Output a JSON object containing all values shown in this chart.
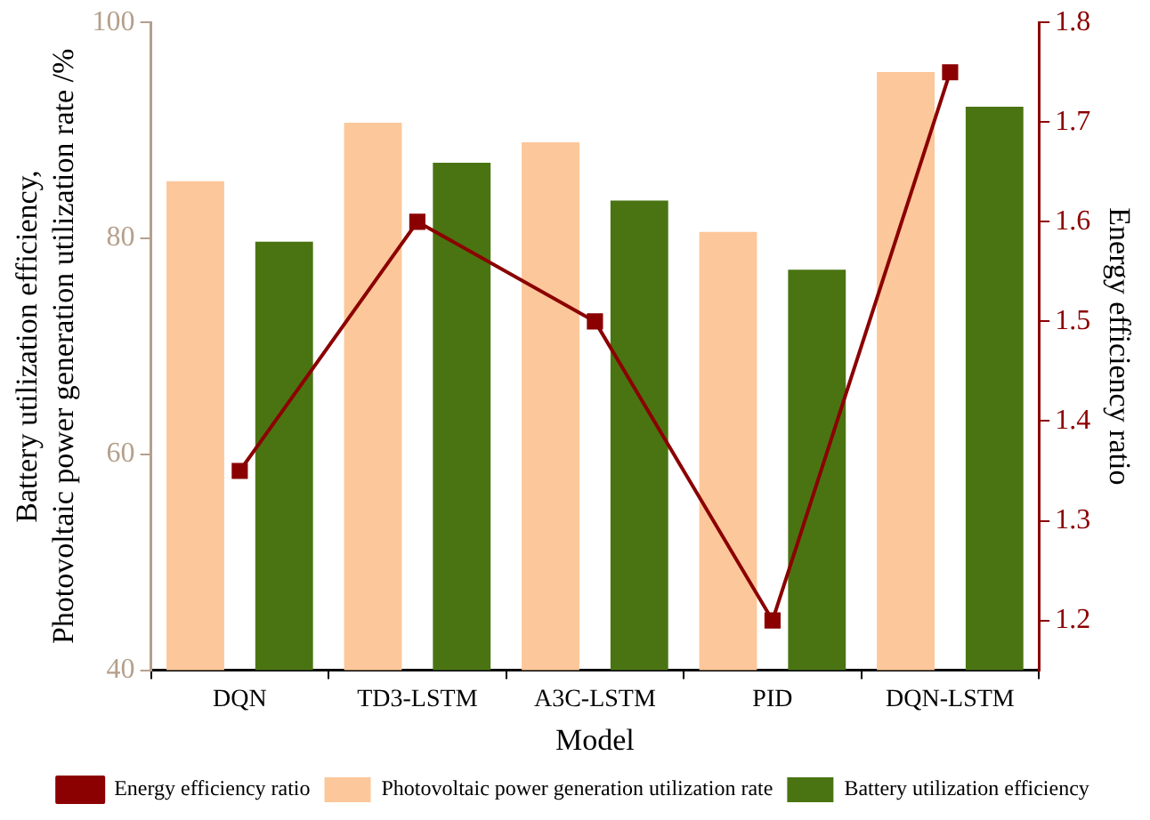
{
  "chart_data": {
    "type": "bar",
    "xlabel": "Model",
    "ylabel": "Battery utilization efficiency, Photovoltaic power generation utilization rate /%",
    "y2label": "Energy efficiency ratio",
    "categories": [
      "DQN",
      "TD3-LSTM",
      "A3C-LSTM",
      "PID",
      "DQN-LSTM"
    ],
    "series": [
      {
        "name": "Photovoltaic power generation utilization rate",
        "color": "#fcc79a",
        "values": [
          85.3,
          90.7,
          88.9,
          80.6,
          95.4
        ]
      },
      {
        "name": "Battery utilization efficiency",
        "color": "#4a7411",
        "values": [
          79.7,
          87.0,
          83.5,
          77.1,
          92.2
        ]
      },
      {
        "name": "Energy efficiency ratio",
        "type": "line",
        "axis": "y2",
        "color": "#8b0000",
        "marker": "square",
        "values": [
          1.35,
          1.6,
          1.5,
          1.2,
          1.75
        ]
      }
    ],
    "ylim": [
      40,
      100
    ],
    "yticks": [
      40,
      60,
      80,
      100
    ],
    "y2lim": [
      1.15,
      1.8
    ],
    "y2ticks": [
      1.2,
      1.3,
      1.4,
      1.5,
      1.6,
      1.7,
      1.8
    ],
    "grid": false,
    "legend": "bottom"
  }
}
